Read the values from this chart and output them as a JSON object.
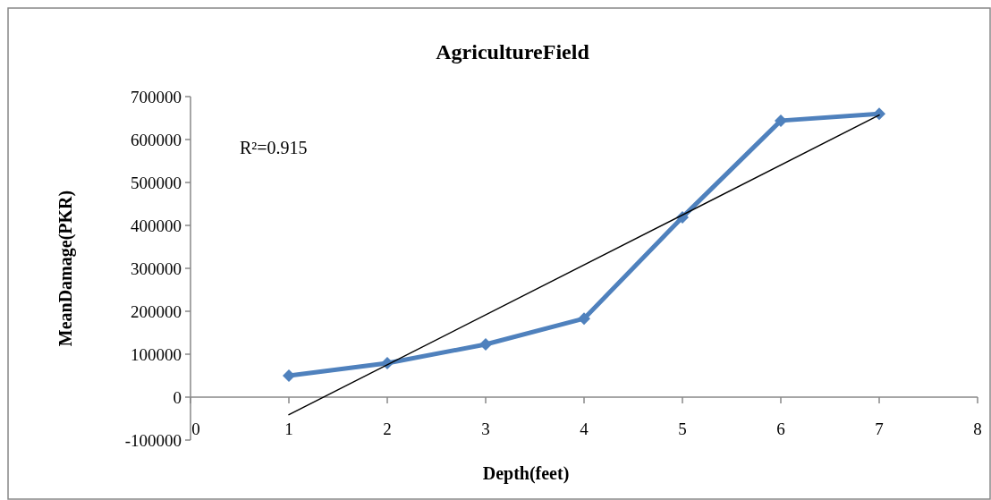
{
  "chart_data": {
    "type": "line",
    "title": "AgricultureField",
    "xlabel": "Depth(feet)",
    "ylabel": "MeanDamage(PKR)",
    "xlim": [
      0,
      8
    ],
    "xticks": [
      0,
      1,
      2,
      3,
      4,
      5,
      6,
      7,
      8
    ],
    "ylim": [
      -100000,
      700000
    ],
    "yticks": [
      -100000,
      0,
      100000,
      200000,
      300000,
      400000,
      500000,
      600000,
      700000
    ],
    "annotations": [
      "R²=0.915"
    ],
    "grid": false,
    "series": [
      {
        "x": [
          1,
          2,
          3,
          4,
          5,
          6,
          7
        ],
        "values": [
          50000,
          79000,
          123000,
          183000,
          419000,
          644000,
          660000
        ],
        "color": "#4f81bd",
        "marker": "diamond"
      },
      {
        "type": "line",
        "x": [
          1,
          7
        ],
        "values": [
          -41000,
          657000
        ],
        "color": "#000000",
        "marker": "none"
      }
    ]
  }
}
